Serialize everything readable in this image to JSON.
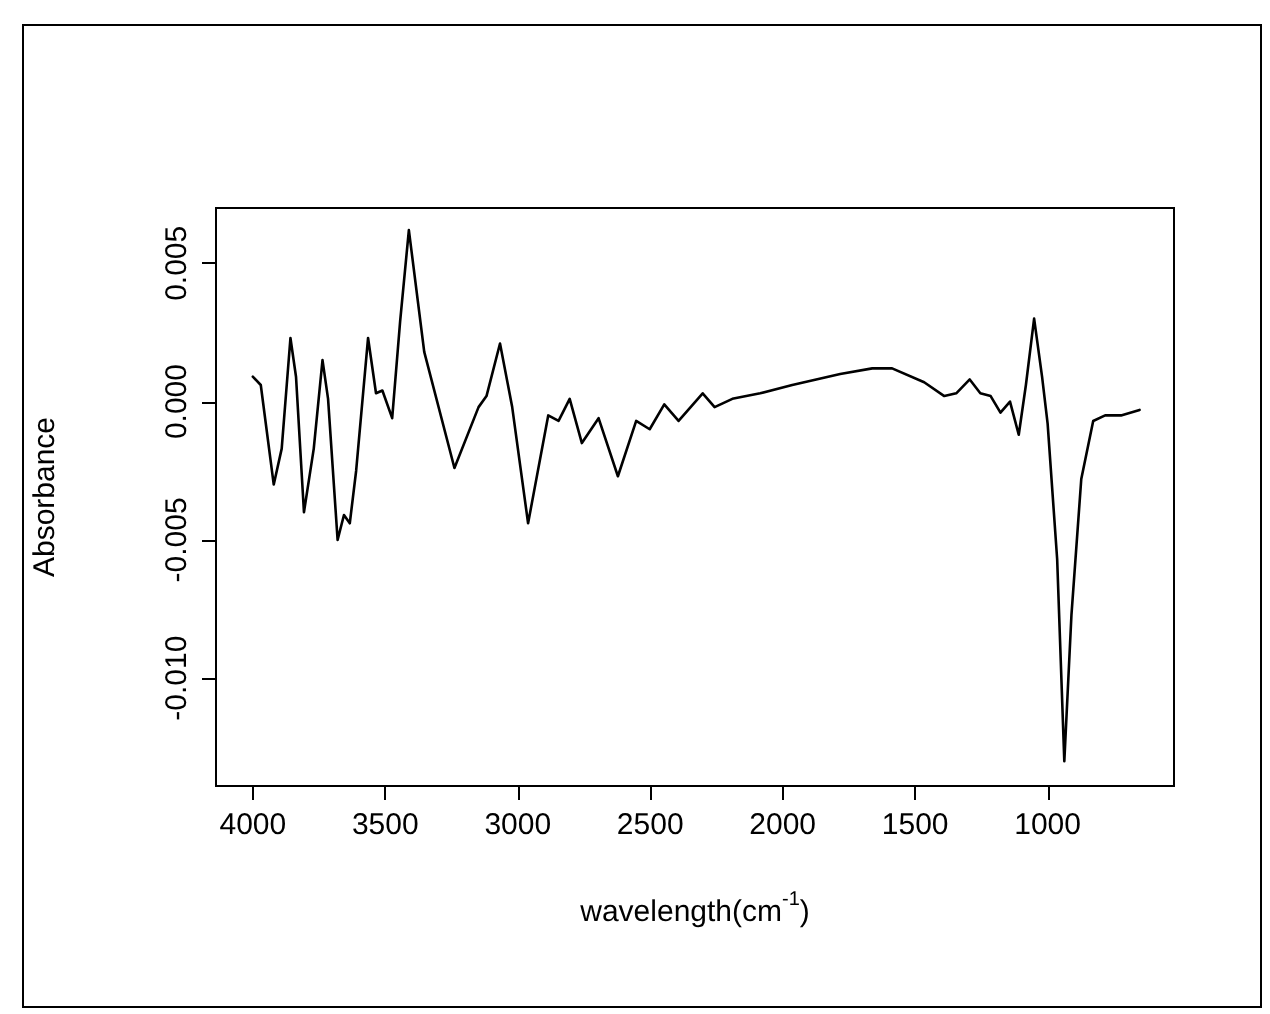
{
  "chart_data": {
    "type": "line",
    "xlabel": "wavelength(cm$^{-1}$)",
    "ylabel": "Absorbance",
    "x": [
      4000,
      3970,
      3921,
      3891,
      3858,
      3837,
      3807,
      3770,
      3737,
      3716,
      3680,
      3656,
      3634,
      3610,
      3565,
      3535,
      3511,
      3474,
      3444,
      3411,
      3353,
      3239,
      3148,
      3118,
      3067,
      3021,
      2961,
      2885,
      2846,
      2804,
      2758,
      2695,
      2622,
      2553,
      2502,
      2447,
      2393,
      2302,
      2257,
      2190,
      2085,
      1964,
      1783,
      1662,
      1587,
      1466,
      1390,
      1345,
      1294,
      1254,
      1215,
      1178,
      1142,
      1109,
      1082,
      1051,
      1021,
      1000,
      964,
      937,
      910,
      873,
      828,
      783,
      723,
      653
    ],
    "series": [
      {
        "color": "#000000",
        "values": [
          0.0009,
          0.0006,
          -0.003,
          -0.0017,
          0.0023,
          0.0009,
          -0.004,
          -0.0017,
          0.0015,
          0.0001,
          -0.005,
          -0.0041,
          -0.0044,
          -0.0025,
          0.0023,
          0.0003,
          0.0004,
          -0.0006,
          0.0029,
          0.0062,
          0.0018,
          -0.0024,
          -0.0002,
          0.0002,
          0.0021,
          -0.0002,
          -0.0044,
          -0.0005,
          -0.0007,
          0.0001,
          -0.0015,
          -0.0006,
          -0.0027,
          -0.0007,
          -0.001,
          -0.0001,
          -0.0007,
          0.0003,
          -0.0002,
          0.0001,
          0.0003,
          0.0006,
          0.001,
          0.0012,
          0.0012,
          0.0007,
          0.0002,
          0.0003,
          0.0008,
          0.0003,
          0.0002,
          -0.0004,
          0.0,
          -0.0012,
          0.0006,
          0.003,
          0.0009,
          -0.0008,
          -0.0057,
          -0.013,
          -0.0077,
          -0.0028,
          -0.0007,
          -0.0005,
          -0.0005,
          -0.0003
        ]
      }
    ],
    "xlim": [
      4139,
      523
    ],
    "ylim": [
      -0.0139,
      0.007
    ],
    "xticks": [
      4000,
      3500,
      3000,
      2500,
      2000,
      1500,
      1000
    ],
    "yticks": [
      {
        "value": -0.01,
        "label": "-0.010"
      },
      {
        "value": -0.005,
        "label": "-0.005"
      },
      {
        "value": 0,
        "label": "0.000"
      },
      {
        "value": 0.005,
        "label": "0.005"
      }
    ],
    "marker": "none",
    "line_style": "solid"
  }
}
